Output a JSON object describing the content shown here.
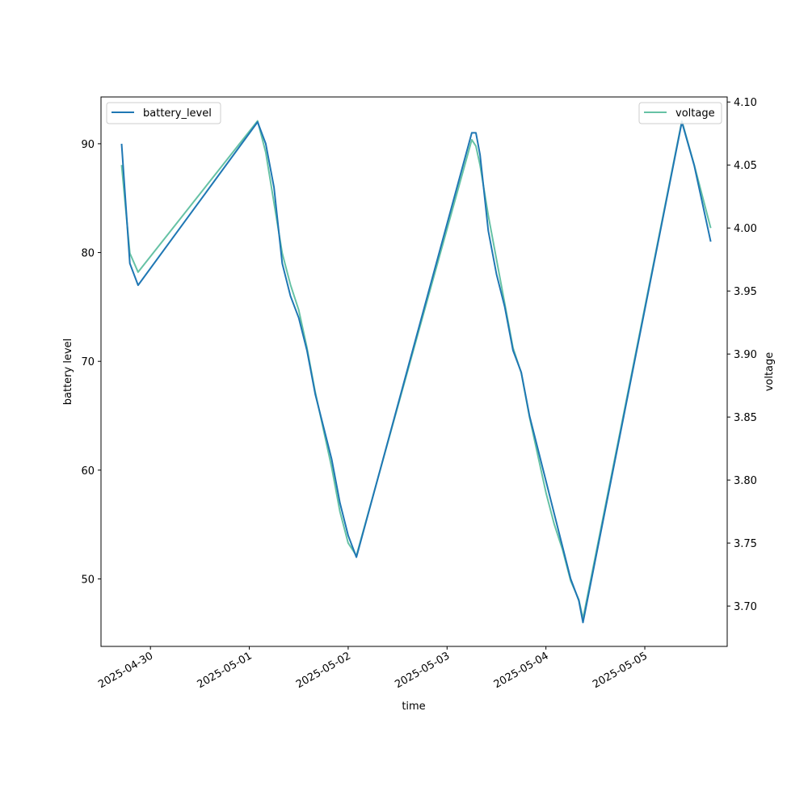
{
  "chart_data": {
    "type": "line",
    "title": "",
    "xlabel": "time",
    "ylabel_left": "battery level",
    "ylabel_right": "voltage",
    "x_ticks": [
      "2025-04-30",
      "2025-05-01",
      "2025-05-02",
      "2025-05-03",
      "2025-05-04",
      "2025-05-05"
    ],
    "xlim": [
      "2025-04-29T12:00",
      "2025-05-05T20:00"
    ],
    "ylim_left": [
      43.8,
      94.3
    ],
    "ylim_right": [
      3.668,
      4.104
    ],
    "y_ticks_left": [
      50,
      60,
      70,
      80,
      90
    ],
    "y_ticks_right": [
      "3.70",
      "3.75",
      "3.80",
      "3.85",
      "3.90",
      "3.95",
      "4.00",
      "4.05",
      "4.10"
    ],
    "grid": false,
    "series": [
      {
        "name": "battery_level",
        "axis": "left",
        "color": "#1f77b4",
        "legend_position": "upper left",
        "points": [
          [
            "2025-04-29T17:00",
            90
          ],
          [
            "2025-04-29T19:00",
            79
          ],
          [
            "2025-04-29T21:00",
            77
          ],
          [
            "2025-05-01T02:00",
            92
          ],
          [
            "2025-05-01T04:00",
            90
          ],
          [
            "2025-05-01T06:00",
            86
          ],
          [
            "2025-05-01T08:00",
            79
          ],
          [
            "2025-05-01T10:00",
            76
          ],
          [
            "2025-05-01T12:00",
            74
          ],
          [
            "2025-05-01T14:00",
            71
          ],
          [
            "2025-05-01T16:00",
            67
          ],
          [
            "2025-05-01T18:00",
            64
          ],
          [
            "2025-05-01T20:00",
            61
          ],
          [
            "2025-05-01T22:00",
            57
          ],
          [
            "2025-05-02T00:00",
            54
          ],
          [
            "2025-05-02T02:00",
            52
          ],
          [
            "2025-05-03T06:00",
            91
          ],
          [
            "2025-05-03T07:00",
            91
          ],
          [
            "2025-05-03T08:00",
            89
          ],
          [
            "2025-05-03T10:00",
            82
          ],
          [
            "2025-05-03T12:00",
            78
          ],
          [
            "2025-05-03T14:00",
            75
          ],
          [
            "2025-05-03T16:00",
            71
          ],
          [
            "2025-05-03T18:00",
            69
          ],
          [
            "2025-05-03T20:00",
            65
          ],
          [
            "2025-05-03T22:00",
            62
          ],
          [
            "2025-05-04T00:00",
            59
          ],
          [
            "2025-05-04T02:00",
            56
          ],
          [
            "2025-05-04T04:00",
            53
          ],
          [
            "2025-05-04T06:00",
            50
          ],
          [
            "2025-05-04T08:00",
            48
          ],
          [
            "2025-05-04T09:00",
            46
          ],
          [
            "2025-05-05T09:00",
            92
          ],
          [
            "2025-05-05T12:00",
            88
          ],
          [
            "2025-05-05T16:00",
            81
          ]
        ]
      },
      {
        "name": "voltage",
        "axis": "right",
        "color": "#66c2a5",
        "legend_position": "upper right",
        "points": [
          [
            "2025-04-29T17:00",
            4.05
          ],
          [
            "2025-04-29T19:00",
            3.98
          ],
          [
            "2025-04-29T21:00",
            3.965
          ],
          [
            "2025-05-01T02:00",
            4.085
          ],
          [
            "2025-05-01T04:00",
            4.06
          ],
          [
            "2025-05-01T06:00",
            4.02
          ],
          [
            "2025-05-01T08:00",
            3.98
          ],
          [
            "2025-05-01T10:00",
            3.955
          ],
          [
            "2025-05-01T12:00",
            3.935
          ],
          [
            "2025-05-01T14:00",
            3.905
          ],
          [
            "2025-05-01T16:00",
            3.87
          ],
          [
            "2025-05-01T18:00",
            3.84
          ],
          [
            "2025-05-01T20:00",
            3.81
          ],
          [
            "2025-05-01T22:00",
            3.775
          ],
          [
            "2025-05-02T00:00",
            3.75
          ],
          [
            "2025-05-02T02:00",
            3.74
          ],
          [
            "2025-05-03T06:00",
            4.07
          ],
          [
            "2025-05-03T07:00",
            4.065
          ],
          [
            "2025-05-03T08:00",
            4.05
          ],
          [
            "2025-05-03T10:00",
            4.01
          ],
          [
            "2025-05-03T12:00",
            3.975
          ],
          [
            "2025-05-03T14:00",
            3.94
          ],
          [
            "2025-05-03T16:00",
            3.905
          ],
          [
            "2025-05-03T18:00",
            3.885
          ],
          [
            "2025-05-03T20:00",
            3.85
          ],
          [
            "2025-05-03T22:00",
            3.82
          ],
          [
            "2025-05-04T00:00",
            3.79
          ],
          [
            "2025-05-04T02:00",
            3.765
          ],
          [
            "2025-05-04T04:00",
            3.745
          ],
          [
            "2025-05-04T06:00",
            3.72
          ],
          [
            "2025-05-04T08:00",
            3.705
          ],
          [
            "2025-05-04T09:00",
            3.69
          ],
          [
            "2025-05-05T09:00",
            4.085
          ],
          [
            "2025-05-05T12:00",
            4.05
          ],
          [
            "2025-05-05T16:00",
            4.0
          ]
        ]
      }
    ]
  }
}
